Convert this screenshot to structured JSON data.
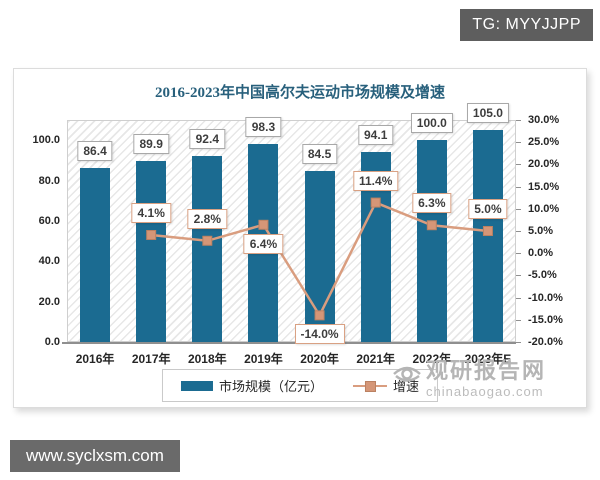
{
  "top_badge": {
    "label": "TG: MYYJJPP"
  },
  "bottom_badge": {
    "label": "www.syclxsm.com"
  },
  "watermark": {
    "name": "观研报告网",
    "domain": "chinabaogao.com"
  },
  "chart_data": {
    "type": "bar",
    "subtype": "combo-bar-line",
    "title": "2016-2023年中国高尔夫运动市场规模及增速",
    "categories": [
      "2016年",
      "2017年",
      "2018年",
      "2019年",
      "2020年",
      "2021年",
      "2022年",
      "2023年E"
    ],
    "series": [
      {
        "name": "市场规模（亿元）",
        "type": "bar",
        "axis": "left",
        "color": "#1b6b91",
        "values": [
          86.4,
          89.9,
          92.4,
          98.3,
          84.5,
          94.1,
          100.0,
          105.0
        ]
      },
      {
        "name": "增速",
        "type": "line",
        "axis": "right",
        "unit": "%",
        "color": "#d99d7f",
        "values": [
          null,
          4.1,
          2.8,
          6.4,
          -14.0,
          11.4,
          6.3,
          5.0
        ],
        "label_positions": [
          null,
          "above",
          "above",
          "below",
          "below",
          "above",
          "above",
          "above"
        ]
      }
    ],
    "left_axis": {
      "min": 0,
      "max": 110,
      "ticks": [
        "100.0",
        "80.0",
        "60.0",
        "40.0",
        "20.0",
        "0.0"
      ]
    },
    "right_axis": {
      "min": -20,
      "max": 30,
      "ticks": [
        "30.0%",
        "25.0%",
        "20.0%",
        "15.0%",
        "10.0%",
        "5.0%",
        "0.0%",
        "-5.0%",
        "-10.0%",
        "-15.0%",
        "-20.0%"
      ]
    },
    "legend_position": "bottom",
    "grid": false,
    "plot_background": "diagonal-hatch"
  }
}
